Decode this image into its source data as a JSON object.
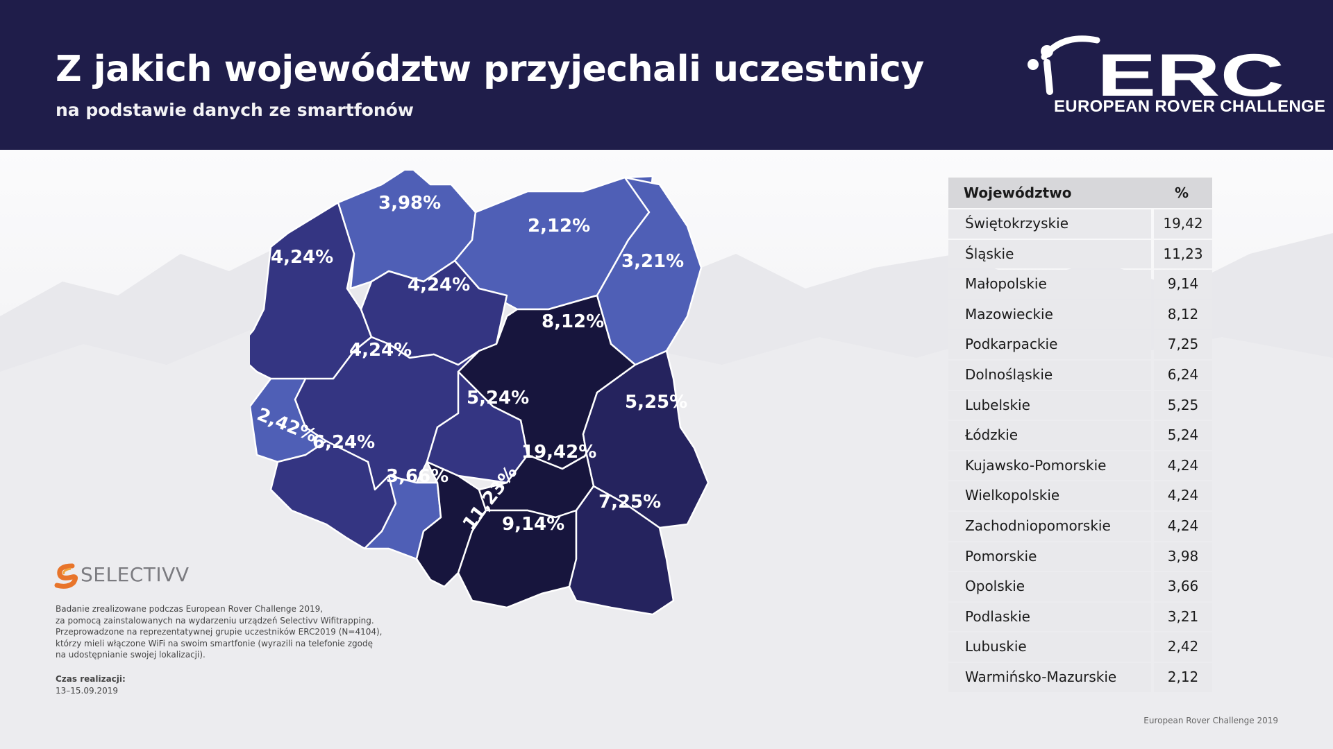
{
  "header": {
    "title": "Z jakich województw przyjechali uczestnicy",
    "subtitle": "na podstawie danych ze smartfonów"
  },
  "brand": {
    "logo_letters": "ERC",
    "logo_name": "EUROPEAN ROVER CHALLENGE",
    "icon": "rover-person-logo-icon"
  },
  "colors": {
    "header_bg": "#1f1d4a",
    "lightest": "#4f5fb6",
    "mid": "#343582",
    "dark": "#25235e",
    "darkest": "#17153d"
  },
  "map": {
    "labels": {
      "zachodniopomorskie": "4,24%",
      "pomorskie": "3,98%",
      "warminsko": "2,12%",
      "podlaskie": "3,21%",
      "kujawsko": "4,24%",
      "wielkopolskie": "4,24%",
      "lubuskie": "2,42%",
      "mazowieckie": "8,12%",
      "lodzkie": "5,24%",
      "lubelskie": "5,25%",
      "dolnoslaskie": "6,24%",
      "opolskie": "3,66%",
      "slaskie": "11,23%",
      "swietokrzyskie": "19,42%",
      "malopolskie": "9,14%",
      "podkarpackie": "7,25%"
    }
  },
  "table": {
    "headers": [
      "Województwo",
      "%"
    ],
    "rows": [
      {
        "name": "Świętokrzyskie",
        "value": "19,42"
      },
      {
        "name": "Śląskie",
        "value": "11,23"
      },
      {
        "name": "Małopolskie",
        "value": "9,14"
      },
      {
        "name": "Mazowieckie",
        "value": "8,12"
      },
      {
        "name": "Podkarpackie",
        "value": "7,25"
      },
      {
        "name": "Dolnośląskie",
        "value": "6,24"
      },
      {
        "name": "Lubelskie",
        "value": "5,25"
      },
      {
        "name": "Łódzkie",
        "value": "5,24"
      },
      {
        "name": "Kujawsko-Pomorskie",
        "value": "4,24"
      },
      {
        "name": "Wielkopolskie",
        "value": "4,24"
      },
      {
        "name": "Zachodniopomorskie",
        "value": "4,24"
      },
      {
        "name": "Pomorskie",
        "value": "3,98"
      },
      {
        "name": "Opolskie",
        "value": "3,66"
      },
      {
        "name": "Podlaskie",
        "value": "3,21"
      },
      {
        "name": "Lubuskie",
        "value": "2,42"
      },
      {
        "name": "Warmińsko-Mazurskie",
        "value": "2,12"
      }
    ]
  },
  "selectivv": {
    "name": "SELECTIVV",
    "icon": "selectivv-logo-icon"
  },
  "note": {
    "lines": [
      "Badanie zrealizowane podczas European Rover Challenge 2019,",
      "za pomocą zainstalowanych na wydarzeniu urządzeń Selectivv Wifitrapping.",
      "Przeprowadzone na reprezentatywnej grupie uczestników ERC2019 (N=4104),",
      "którzy mieli włączone WiFi na swoim smartfonie (wyrazili na telefonie zgodę",
      "na udostępnianie swojej lokalizacji)."
    ],
    "time_label": "Czas realizacji:",
    "time_value": "13–15.09.2019"
  },
  "footer": "European Rover Challenge 2019"
}
